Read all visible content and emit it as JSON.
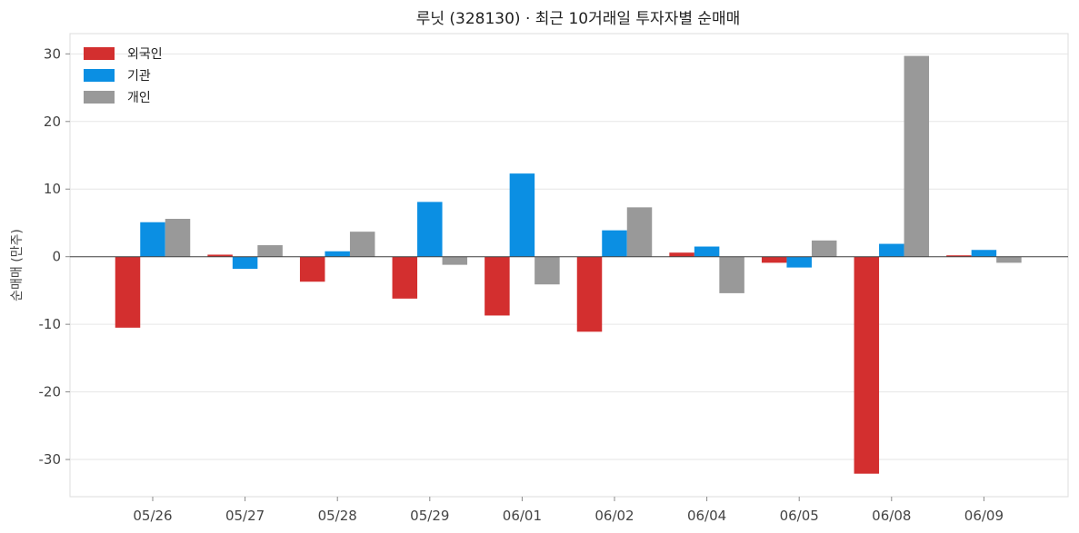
{
  "chart_data": {
    "type": "bar",
    "title": "루닛 (328130) · 최근 10거래일 투자자별 순매매",
    "xlabel": "",
    "ylabel": "순매매 (만주)",
    "categories": [
      "05/26",
      "05/27",
      "05/28",
      "05/29",
      "06/01",
      "06/02",
      "06/04",
      "06/05",
      "06/08",
      "06/09"
    ],
    "series": [
      {
        "name": "외국인",
        "color": "#d32f2f",
        "values": [
          -10.5,
          0.3,
          -3.7,
          -6.2,
          -8.7,
          -11.1,
          0.6,
          -0.9,
          -32.1,
          0.2
        ]
      },
      {
        "name": "기관",
        "color": "#0b8fe3",
        "values": [
          5.1,
          -1.8,
          0.8,
          8.1,
          12.3,
          3.9,
          1.5,
          -1.6,
          1.9,
          1.0
        ]
      },
      {
        "name": "개인",
        "color": "#999999",
        "values": [
          5.6,
          1.7,
          3.7,
          -1.2,
          -4.1,
          7.3,
          -5.4,
          2.4,
          29.7,
          -0.9
        ]
      }
    ],
    "yticks": [
      30,
      20,
      10,
      0,
      -10,
      -20,
      -30
    ],
    "ylim": [
      -35.5,
      33
    ],
    "grid": true,
    "legend": "top-left"
  }
}
